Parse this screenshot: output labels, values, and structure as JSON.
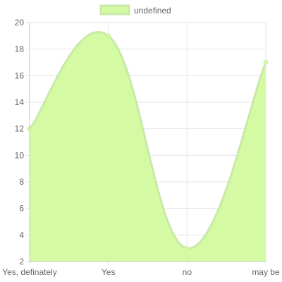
{
  "chart_data": {
    "type": "area",
    "categories": [
      "Yes, definately",
      "Yes",
      "no",
      "may be"
    ],
    "series": [
      {
        "name": "undefined",
        "values": [
          12,
          19,
          3,
          17
        ]
      }
    ],
    "yticks": [
      "2",
      "4",
      "6",
      "8",
      "10",
      "12",
      "14",
      "16",
      "18",
      "20"
    ],
    "ylim": [
      2,
      20
    ],
    "grid": true,
    "legend_position": "top",
    "colors": {
      "fill": "#d4fba4",
      "stroke": "#c9e9a8",
      "point": "#c8f59a",
      "grid": "#e6e6e6",
      "axis": "#c8c8c8",
      "text": "#666666"
    }
  }
}
